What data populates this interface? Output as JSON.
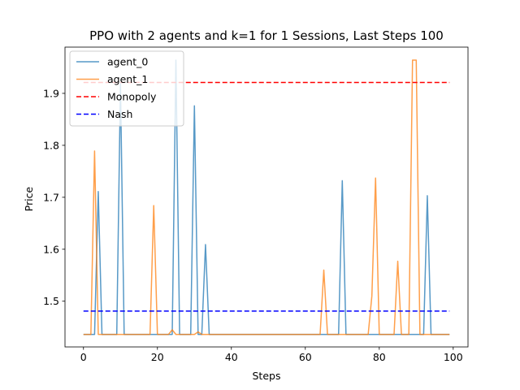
{
  "chart_data": {
    "type": "line",
    "title": "PPO with 2 agents and k=1 for 1 Sessions, Last Steps 100",
    "xlabel": "Steps",
    "ylabel": "Price",
    "xlim": [
      -5,
      104
    ],
    "ylim": [
      1.412,
      1.989
    ],
    "xticks": [
      0,
      20,
      40,
      60,
      80,
      100
    ],
    "xtick_labels": [
      "0",
      "20",
      "40",
      "60",
      "80",
      "100"
    ],
    "yticks": [
      1.5,
      1.6,
      1.7,
      1.8,
      1.9
    ],
    "ytick_labels": [
      "1.5",
      "1.6",
      "1.7",
      "1.8",
      "1.9"
    ],
    "grid": false,
    "legend_position": "upper-left",
    "series": [
      {
        "name": "agent_0",
        "color": "#1f77b4",
        "style": "solid",
        "opacity": 0.75,
        "points": [
          [
            0,
            1.436
          ],
          [
            3,
            1.436
          ],
          [
            4,
            1.711
          ],
          [
            5,
            1.436
          ],
          [
            9,
            1.436
          ],
          [
            10,
            1.92
          ],
          [
            11,
            1.436
          ],
          [
            24,
            1.436
          ],
          [
            25,
            1.964
          ],
          [
            26,
            1.436
          ],
          [
            29,
            1.436
          ],
          [
            30,
            1.876
          ],
          [
            31,
            1.436
          ],
          [
            32,
            1.436
          ],
          [
            33,
            1.609
          ],
          [
            34,
            1.436
          ],
          [
            69,
            1.436
          ],
          [
            70,
            1.732
          ],
          [
            71,
            1.436
          ],
          [
            92,
            1.436
          ],
          [
            93,
            1.703
          ],
          [
            94,
            1.436
          ],
          [
            99,
            1.436
          ]
        ]
      },
      {
        "name": "agent_1",
        "color": "#ff7f0e",
        "style": "solid",
        "opacity": 0.75,
        "points": [
          [
            0,
            1.436
          ],
          [
            2,
            1.436
          ],
          [
            3,
            1.789
          ],
          [
            4,
            1.436
          ],
          [
            18,
            1.436
          ],
          [
            19,
            1.684
          ],
          [
            20,
            1.436
          ],
          [
            23,
            1.436
          ],
          [
            24,
            1.445
          ],
          [
            25,
            1.436
          ],
          [
            30,
            1.436
          ],
          [
            31,
            1.441
          ],
          [
            32,
            1.436
          ],
          [
            64,
            1.436
          ],
          [
            65,
            1.56
          ],
          [
            66,
            1.436
          ],
          [
            77,
            1.436
          ],
          [
            78,
            1.51
          ],
          [
            79,
            1.737
          ],
          [
            80,
            1.436
          ],
          [
            84,
            1.436
          ],
          [
            85,
            1.577
          ],
          [
            86,
            1.436
          ],
          [
            88,
            1.436
          ],
          [
            89,
            1.964
          ],
          [
            90,
            1.964
          ],
          [
            91,
            1.436
          ],
          [
            99,
            1.436
          ]
        ]
      },
      {
        "name": "Monopoly",
        "color": "#ff0000",
        "style": "dashed",
        "opacity": 1,
        "points": [
          [
            0,
            1.921
          ],
          [
            99,
            1.921
          ]
        ]
      },
      {
        "name": "Nash",
        "color": "#0000ff",
        "style": "dashed",
        "opacity": 1,
        "points": [
          [
            0,
            1.481
          ],
          [
            99,
            1.481
          ]
        ]
      }
    ]
  }
}
